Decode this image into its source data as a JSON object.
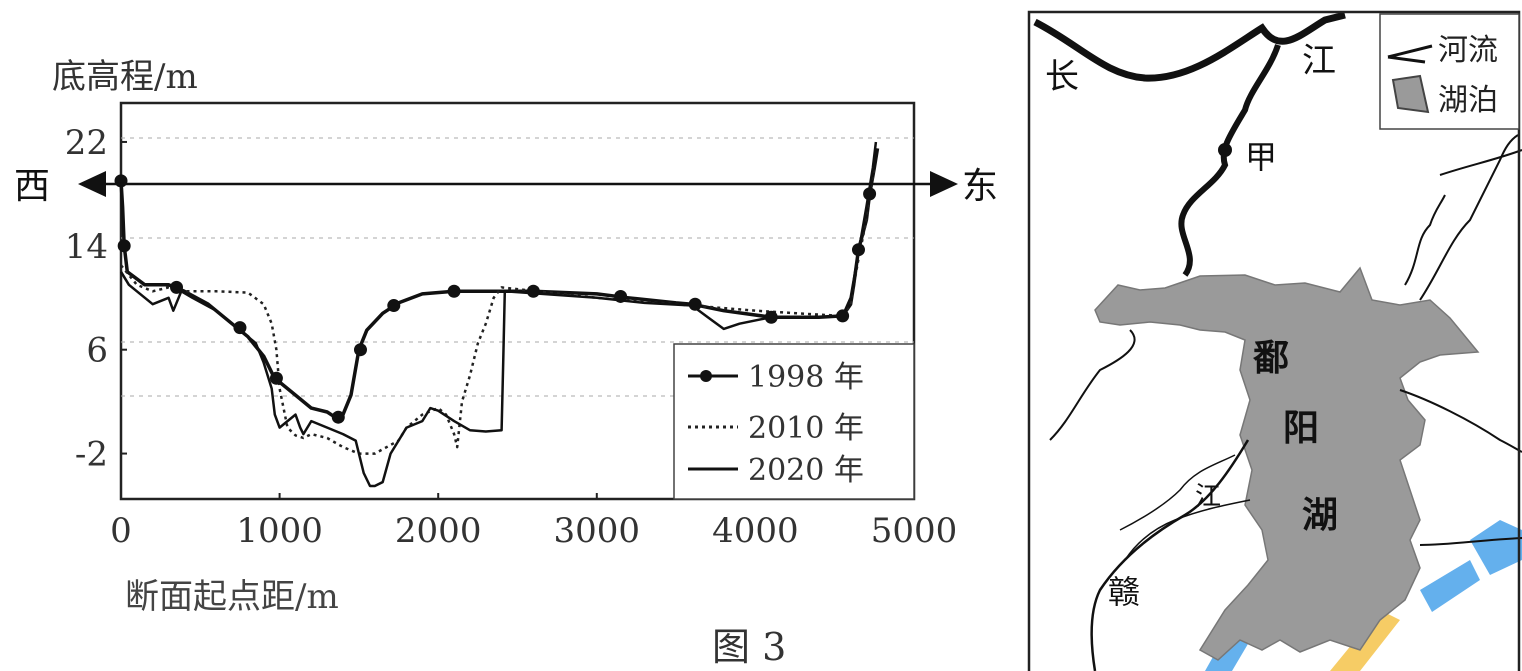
{
  "chart_data": {
    "type": "line",
    "ylabel": "底高程/m",
    "xlabel": "断面起点距/m",
    "caption": "图 3",
    "direction_left": "西",
    "direction_right": "东",
    "xlim": [
      0,
      5000
    ],
    "ylim": [
      -5.5,
      25
    ],
    "xticks": [
      "0",
      "1000",
      "2000",
      "3000",
      "4000",
      "5000"
    ],
    "yticks": [
      "22",
      "14",
      "6",
      "-2"
    ],
    "x_tick_values": [
      0,
      1000,
      2000,
      3000,
      4000,
      5000
    ],
    "y_tick_values": [
      22,
      14,
      6,
      -2
    ],
    "series": [
      {
        "name": "1998 年",
        "style": "solid-markers",
        "points": [
          [
            0,
            19
          ],
          [
            10,
            17
          ],
          [
            20,
            14
          ],
          [
            40,
            12
          ],
          [
            150,
            11
          ],
          [
            300,
            11
          ],
          [
            400,
            10.5
          ],
          [
            550,
            9.5
          ],
          [
            700,
            8
          ],
          [
            800,
            7
          ],
          [
            900,
            5.5
          ],
          [
            960,
            4
          ],
          [
            1000,
            3.5
          ],
          [
            1100,
            2.5
          ],
          [
            1200,
            1.5
          ],
          [
            1300,
            1.2
          ],
          [
            1350,
            0.8
          ],
          [
            1400,
            1
          ],
          [
            1450,
            2.5
          ],
          [
            1500,
            6
          ],
          [
            1550,
            7.5
          ],
          [
            1650,
            8.8
          ],
          [
            1750,
            9.6
          ],
          [
            1900,
            10.3
          ],
          [
            2100,
            10.5
          ],
          [
            2300,
            10.5
          ],
          [
            2600,
            10.5
          ],
          [
            3000,
            10.3
          ],
          [
            3200,
            10
          ],
          [
            3500,
            9.6
          ],
          [
            3600,
            9.5
          ],
          [
            3800,
            9
          ],
          [
            4100,
            8.5
          ],
          [
            4400,
            8.5
          ],
          [
            4550,
            8.6
          ],
          [
            4600,
            9.5
          ],
          [
            4620,
            11
          ],
          [
            4650,
            13.7
          ],
          [
            4700,
            16
          ],
          [
            4720,
            18
          ],
          [
            4750,
            20
          ],
          [
            4770,
            21.5
          ]
        ],
        "markers": [
          [
            0,
            19
          ],
          [
            20,
            14
          ],
          [
            350,
            10.8
          ],
          [
            750,
            7.7
          ],
          [
            980,
            3.8
          ],
          [
            1370,
            0.8
          ],
          [
            1510,
            6
          ],
          [
            1720,
            9.4
          ],
          [
            2100,
            10.5
          ],
          [
            2600,
            10.5
          ],
          [
            3150,
            10.1
          ],
          [
            3620,
            9.5
          ],
          [
            4100,
            8.5
          ],
          [
            4550,
            8.6
          ],
          [
            4650,
            13.7
          ],
          [
            4720,
            18
          ]
        ]
      },
      {
        "name": "2010 年",
        "style": "dotted",
        "points": [
          [
            0,
            12.5
          ],
          [
            100,
            11
          ],
          [
            200,
            10.5
          ],
          [
            300,
            10.8
          ],
          [
            400,
            10.5
          ],
          [
            600,
            10.5
          ],
          [
            800,
            10.4
          ],
          [
            900,
            9.5
          ],
          [
            950,
            8
          ],
          [
            980,
            6
          ],
          [
            1000,
            3
          ],
          [
            1050,
            0
          ],
          [
            1100,
            -0.6
          ],
          [
            1150,
            -0.8
          ],
          [
            1200,
            -0.5
          ],
          [
            1300,
            -0.8
          ],
          [
            1400,
            -1.5
          ],
          [
            1500,
            -2
          ],
          [
            1600,
            -2
          ],
          [
            1750,
            -1
          ],
          [
            1800,
            0
          ],
          [
            1900,
            1
          ],
          [
            2000,
            1.5
          ],
          [
            2050,
            1
          ],
          [
            2100,
            -0.5
          ],
          [
            2120,
            -1.5
          ],
          [
            2150,
            2
          ],
          [
            2200,
            4
          ],
          [
            2250,
            6.5
          ],
          [
            2300,
            8
          ],
          [
            2350,
            10
          ],
          [
            2400,
            10.8
          ],
          [
            3000,
            10
          ],
          [
            3500,
            9.5
          ],
          [
            4000,
            9
          ],
          [
            4400,
            8.7
          ],
          [
            4550,
            8.6
          ],
          [
            4600,
            9.5
          ],
          [
            4650,
            13
          ],
          [
            4700,
            16
          ],
          [
            4750,
            20
          ]
        ]
      },
      {
        "name": "2020 年",
        "style": "solid",
        "points": [
          [
            0,
            12
          ],
          [
            50,
            11
          ],
          [
            200,
            9.5
          ],
          [
            300,
            10
          ],
          [
            330,
            9
          ],
          [
            380,
            10.5
          ],
          [
            450,
            10
          ],
          [
            600,
            9
          ],
          [
            750,
            7.5
          ],
          [
            850,
            6.5
          ],
          [
            900,
            5
          ],
          [
            950,
            3
          ],
          [
            970,
            1
          ],
          [
            1000,
            0
          ],
          [
            1050,
            0.5
          ],
          [
            1100,
            1
          ],
          [
            1130,
            0
          ],
          [
            1150,
            -0.5
          ],
          [
            1200,
            0.5
          ],
          [
            1300,
            0
          ],
          [
            1400,
            -0.5
          ],
          [
            1480,
            -1
          ],
          [
            1530,
            -3.5
          ],
          [
            1570,
            -4.5
          ],
          [
            1600,
            -4.5
          ],
          [
            1650,
            -4.2
          ],
          [
            1700,
            -2
          ],
          [
            1800,
            0
          ],
          [
            1900,
            0.5
          ],
          [
            1950,
            1.5
          ],
          [
            2000,
            1.3
          ],
          [
            2100,
            0.5
          ],
          [
            2200,
            -0.2
          ],
          [
            2300,
            -0.3
          ],
          [
            2400,
            -0.2
          ],
          [
            2410,
            5
          ],
          [
            2420,
            10.5
          ],
          [
            3000,
            10
          ],
          [
            3300,
            9.6
          ],
          [
            3600,
            9.4
          ],
          [
            3700,
            8.5
          ],
          [
            3800,
            7.6
          ],
          [
            3900,
            8
          ],
          [
            4100,
            8.5
          ],
          [
            4400,
            8.5
          ],
          [
            4550,
            8.6
          ],
          [
            4600,
            10
          ],
          [
            4650,
            13.5
          ],
          [
            4700,
            17
          ],
          [
            4740,
            20
          ],
          [
            4760,
            22
          ]
        ]
      }
    ]
  },
  "map": {
    "labels": {
      "chang": "长",
      "jiang": "江",
      "jia": "甲",
      "po": "鄱",
      "yang": "阳",
      "hu": "湖",
      "gan": "赣",
      "jiang2": "江"
    },
    "legend": {
      "river": "河流",
      "lake": "湖泊"
    },
    "colors": {
      "lake": "#9a9a9a",
      "watermark_blue": "#4aa3ea",
      "watermark_yellow": "#f5c34a"
    }
  }
}
